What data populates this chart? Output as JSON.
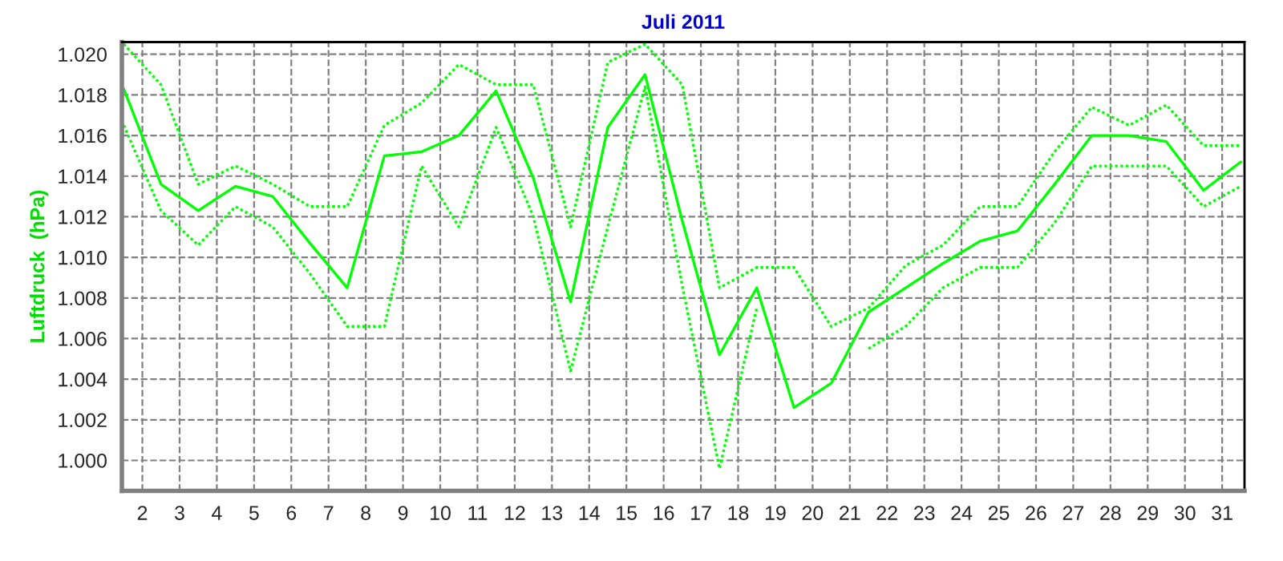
{
  "chart_data": {
    "type": "line",
    "title": "Juli 2011",
    "ylabel": "Luftdruck  (hPa)",
    "x": [
      1.5,
      2.5,
      3.5,
      4.5,
      5.5,
      6.5,
      7.5,
      8.5,
      9.5,
      10.5,
      11.5,
      12.5,
      13.5,
      14.5,
      15.5,
      16.5,
      17.5,
      18.5,
      19.5,
      20.5,
      21.5,
      22.5,
      23.5,
      24.5,
      25.5,
      26.5,
      27.5,
      28.5,
      29.5,
      30.5,
      31.5
    ],
    "series": [
      {
        "color": "#00ff00",
        "line_style": "dotted",
        "values": [
          1.0205,
          1.0185,
          1.0136,
          1.0145,
          1.0136,
          1.0125,
          1.0125,
          1.0165,
          1.0176,
          1.0195,
          1.0185,
          1.0185,
          1.0115,
          1.0196,
          1.0205,
          1.0185,
          1.0085,
          1.0095,
          1.0095,
          1.0066,
          1.0075,
          1.0096,
          1.0106,
          1.0125,
          1.0125,
          1.0152,
          1.0174,
          1.0165,
          1.0175,
          1.0155,
          1.0155
        ]
      },
      {
        "color": "#00ff00",
        "line_style": "solid",
        "values": [
          1.0183,
          1.0136,
          1.0123,
          1.0135,
          1.013,
          1.0107,
          1.0085,
          1.015,
          1.0152,
          1.016,
          1.0182,
          1.0139,
          1.0078,
          1.0164,
          1.019,
          1.0118,
          1.0052,
          1.0085,
          1.0026,
          1.0038,
          1.0073,
          1.0085,
          1.0097,
          1.0108,
          1.0113,
          1.0136,
          1.016,
          1.016,
          1.0157,
          1.0133,
          1.0147
        ]
      },
      {
        "color": "#00ff00",
        "line_style": "dotted",
        "values": [
          1.0165,
          1.0123,
          1.0106,
          1.0125,
          1.0115,
          1.0092,
          1.0066,
          1.0066,
          1.0145,
          1.0115,
          1.0164,
          1.012,
          1.0044,
          1.0115,
          1.0184,
          1.0086,
          0.9996,
          1.0075,
          null,
          null,
          1.0055,
          1.0066,
          1.0085,
          1.0095,
          1.0095,
          1.0117,
          1.0145,
          1.0145,
          1.0145,
          1.0125,
          1.0135
        ]
      }
    ],
    "xlim": [
      1.45,
      31.6
    ],
    "xticks": [
      2,
      3,
      4,
      5,
      6,
      7,
      8,
      9,
      10,
      11,
      12,
      13,
      14,
      15,
      16,
      17,
      18,
      19,
      20,
      21,
      22,
      23,
      24,
      25,
      26,
      27,
      28,
      29,
      30,
      31
    ],
    "ylim": [
      0.9985,
      1.0206
    ],
    "yticks": [
      {
        "value": 1.0,
        "label": "1.000"
      },
      {
        "value": 1.002,
        "label": "1.002"
      },
      {
        "value": 1.004,
        "label": "1.004"
      },
      {
        "value": 1.006,
        "label": "1.006"
      },
      {
        "value": 1.008,
        "label": "1.008"
      },
      {
        "value": 1.01,
        "label": "1.010"
      },
      {
        "value": 1.012,
        "label": "1.012"
      },
      {
        "value": 1.014,
        "label": "1.014"
      },
      {
        "value": 1.016,
        "label": "1.016"
      },
      {
        "value": 1.018,
        "label": "1.018"
      },
      {
        "value": 1.02,
        "label": "1.020"
      }
    ],
    "grid": true,
    "marker": "none"
  }
}
